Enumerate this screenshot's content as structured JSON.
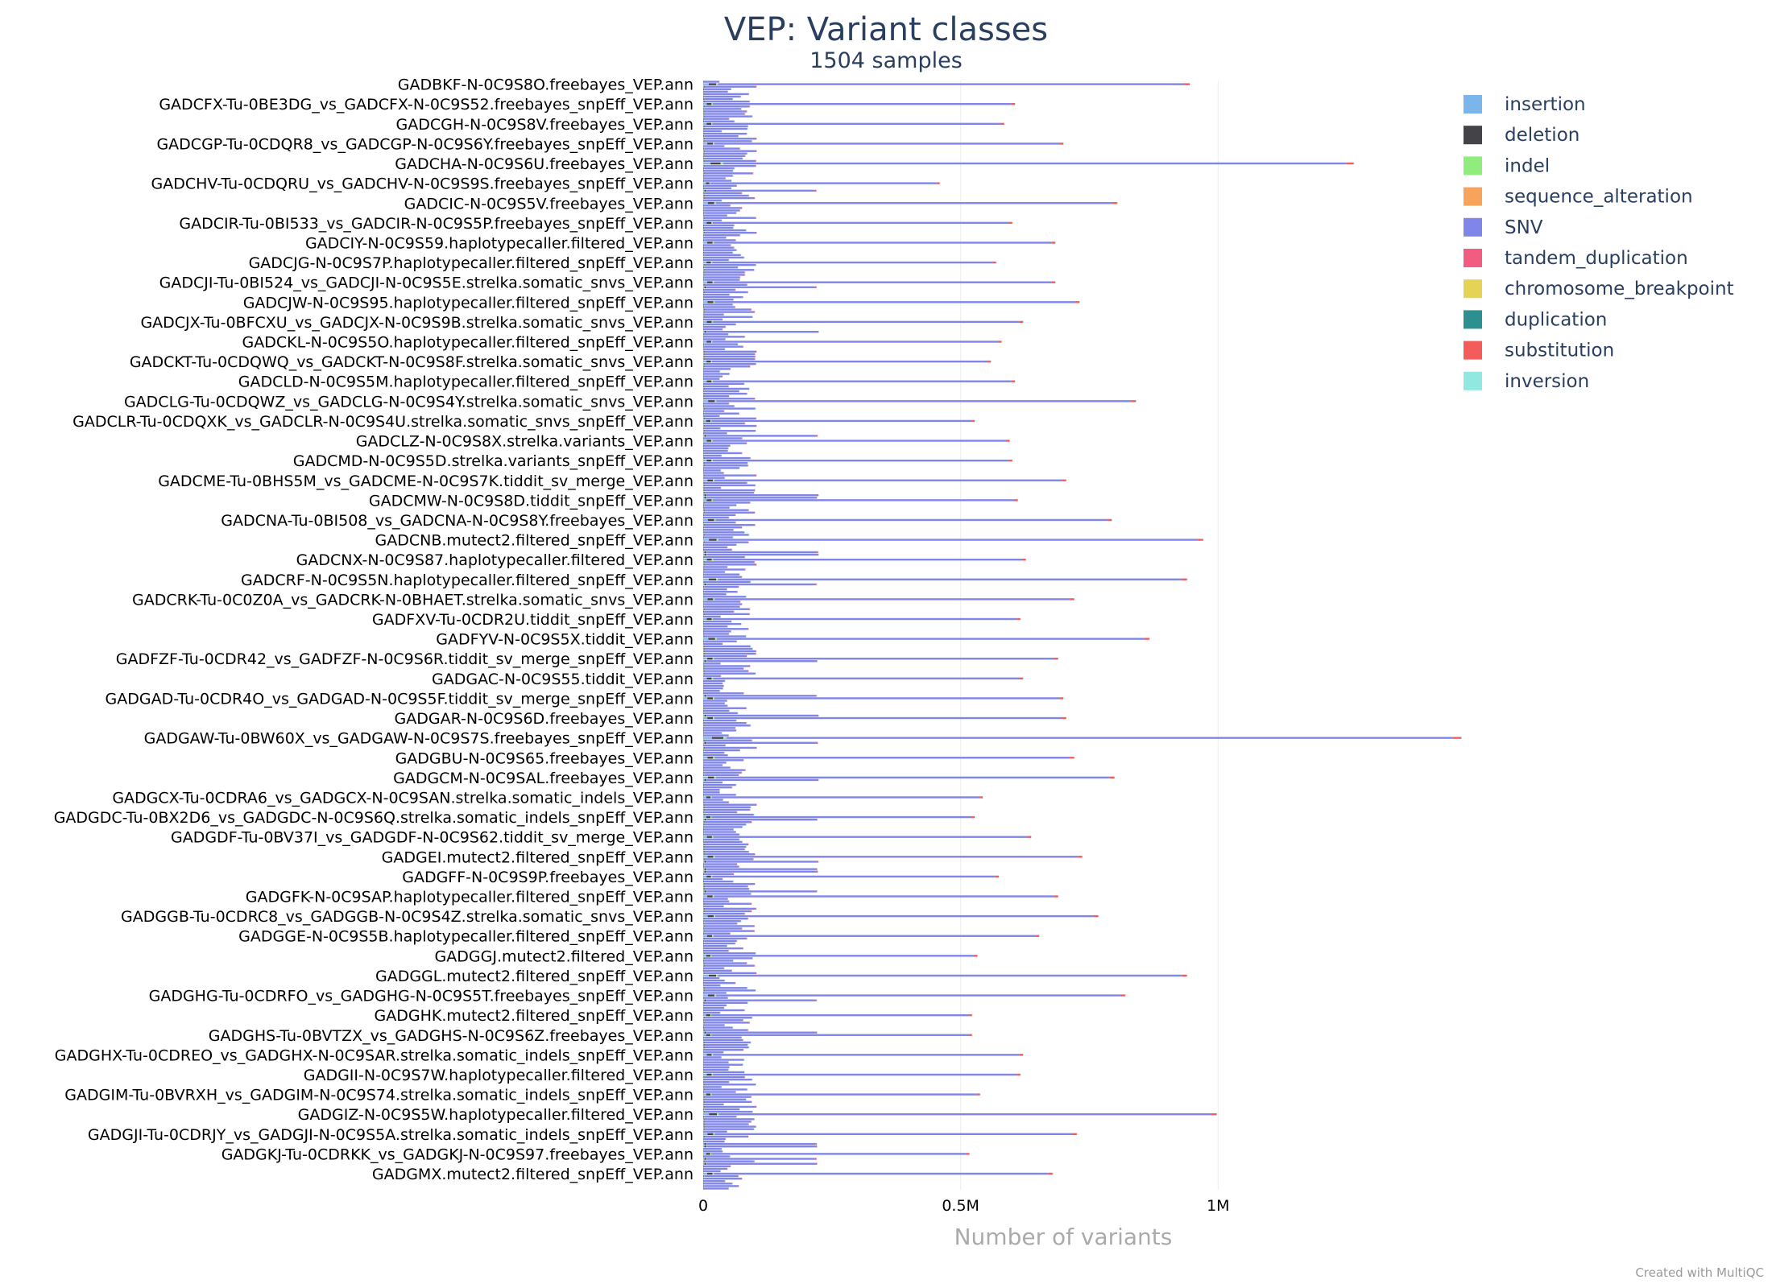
{
  "chart_data": {
    "type": "bar",
    "orientation": "horizontal",
    "stacked": true,
    "title": "VEP: Variant classes",
    "subtitle": "1504 samples",
    "xlabel": "Number of variants",
    "ylabel": "",
    "xlim": [
      0,
      1450000
    ],
    "xticks": [
      {
        "value": 0,
        "label": "0"
      },
      {
        "value": 500000,
        "label": "0.5M"
      },
      {
        "value": 1000000,
        "label": "1M"
      }
    ],
    "grid": true,
    "legend_position": "top-right",
    "credit": "Created with MultiQC",
    "series": [
      {
        "name": "insertion",
        "color": "#7cb5ec"
      },
      {
        "name": "deletion",
        "color": "#434348"
      },
      {
        "name": "indel",
        "color": "#90ed7d"
      },
      {
        "name": "sequence_alteration",
        "color": "#f7a35c"
      },
      {
        "name": "SNV",
        "color": "#8085e9"
      },
      {
        "name": "tandem_duplication",
        "color": "#f15c80"
      },
      {
        "name": "chromosome_breakpoint",
        "color": "#e4d354"
      },
      {
        "name": "duplication",
        "color": "#2b908f"
      },
      {
        "name": "substitution",
        "color": "#f45b5b"
      },
      {
        "name": "inversion",
        "color": "#91e8e1"
      }
    ],
    "labeled_categories": [
      {
        "label": "GADBKF-N-0C9S8O.freebayes_VEP.ann",
        "snv": 905000
      },
      {
        "label": "GADCFX-Tu-0BE3DG_vs_GADCFX-N-0C9S52.freebayes_snpEff_VEP.ann",
        "snv": 580000
      },
      {
        "label": "GADCGH-N-0C9S8V.freebayes_VEP.ann",
        "snv": 560000
      },
      {
        "label": "GADCGP-Tu-0CDQR8_vs_GADCGP-N-0C9S6Y.freebayes_snpEff_VEP.ann",
        "snv": 670000
      },
      {
        "label": "GADCHA-N-0C9S6U.freebayes_VEP.ann",
        "snv": 1210000
      },
      {
        "label": "GADCHV-Tu-0CDQRU_vs_GADCHV-N-0C9S9S.freebayes_snpEff_VEP.ann",
        "snv": 440000
      },
      {
        "label": "GADCIC-N-0C9S5V.freebayes_VEP.ann",
        "snv": 770000
      },
      {
        "label": "GADCIR-Tu-0BI533_vs_GADCIR-N-0C9S5P.freebayes_snpEff_VEP.ann",
        "snv": 575000
      },
      {
        "label": "GADCIY-N-0C9S59.haplotypecaller.filtered_VEP.ann",
        "snv": 655000
      },
      {
        "label": "GADCJG-N-0C9S7P.haplotypecaller.filtered_snpEff_VEP.ann",
        "snv": 545000
      },
      {
        "label": "GADCJI-Tu-0BI524_vs_GADCJI-N-0C9S5E.strelka.somatic_snvs_VEP.ann",
        "snv": 655000
      },
      {
        "label": "GADCJW-N-0C9S95.haplotypecaller.filtered_snpEff_VEP.ann",
        "snv": 700000
      },
      {
        "label": "GADCJX-Tu-0BFCXU_vs_GADCJX-N-0C9S9B.strelka.somatic_snvs_VEP.ann",
        "snv": 595000
      },
      {
        "label": "GADCKL-N-0C9S5O.haplotypecaller.filtered_snpEff_VEP.ann",
        "snv": 555000
      },
      {
        "label": "GADCKT-Tu-0CDQWQ_vs_GADCKT-N-0C9S8F.strelka.somatic_snvs_VEP.ann",
        "snv": 535000
      },
      {
        "label": "GADCLD-N-0C9S5M.haplotypecaller.filtered_snpEff_VEP.ann",
        "snv": 580000
      },
      {
        "label": "GADCLG-Tu-0CDQWZ_vs_GADCLG-N-0C9S4Y.strelka.somatic_snvs_VEP.ann",
        "snv": 805000
      },
      {
        "label": "GADCLR-Tu-0CDQXK_vs_GADCLR-N-0C9S4U.strelka.somatic_snvs_snpEff_VEP.ann",
        "snv": 505000
      },
      {
        "label": "GADCLZ-N-0C9S8X.strelka.variants_VEP.ann",
        "snv": 570000
      },
      {
        "label": "GADCMD-N-0C9S5D.strelka.variants_snpEff_VEP.ann",
        "snv": 575000
      },
      {
        "label": "GADCME-Tu-0BHS5M_vs_GADCME-N-0C9S7K.tiddit_sv_merge_VEP.ann",
        "snv": 675000
      },
      {
        "label": "GADCMW-N-0C9S8D.tiddit_snpEff_VEP.ann",
        "snv": 585000
      },
      {
        "label": "GADCNA-Tu-0BI508_vs_GADCNA-N-0C9S8Y.freebayes_VEP.ann",
        "snv": 760000
      },
      {
        "label": "GADCNB.mutect2.filtered_snpEff_VEP.ann",
        "snv": 930000
      },
      {
        "label": "GADCNX-N-0C9S87.haplotypecaller.filtered_VEP.ann",
        "snv": 600000
      },
      {
        "label": "GADCRF-N-0C9S5N.haplotypecaller.filtered_snpEff_VEP.ann",
        "snv": 900000
      },
      {
        "label": "GADCRK-Tu-0C0Z0A_vs_GADCRK-N-0BHAET.strelka.somatic_snvs_VEP.ann",
        "snv": 690000
      },
      {
        "label": "GADFXV-Tu-0CDR2U.tiddit_snpEff_VEP.ann",
        "snv": 590000
      },
      {
        "label": "GADFYV-N-0C9S5X.tiddit_VEP.ann",
        "snv": 830000
      },
      {
        "label": "GADFZF-Tu-0CDR42_vs_GADFZF-N-0C9S6R.tiddit_sv_merge_snpEff_VEP.ann",
        "snv": 660000
      },
      {
        "label": "GADGAC-N-0C9S55.tiddit_VEP.ann",
        "snv": 595000
      },
      {
        "label": "GADGAD-Tu-0CDR4O_vs_GADGAD-N-0C9S5F.tiddit_sv_merge_snpEff_VEP.ann",
        "snv": 670000
      },
      {
        "label": "GADGAR-N-0C9S6D.freebayes_VEP.ann",
        "snv": 675000
      },
      {
        "label": "GADGAW-Tu-0BW60X_vs_GADGAW-N-0C9S7S.freebayes_snpEff_VEP.ann",
        "snv": 1410000
      },
      {
        "label": "GADGBU-N-0C9S65.freebayes_VEP.ann",
        "snv": 690000
      },
      {
        "label": "GADGCM-N-0C9SAL.freebayes_VEP.ann",
        "snv": 765000
      },
      {
        "label": "GADGCX-Tu-0CDRA6_vs_GADGCX-N-0C9SAN.strelka.somatic_indels_VEP.ann",
        "snv": 520000
      },
      {
        "label": "GADGDC-Tu-0BX2D6_vs_GADGDC-N-0C9S6Q.strelka.somatic_indels_snpEff_VEP.ann",
        "snv": 505000
      },
      {
        "label": "GADGDF-Tu-0BV37I_vs_GADGDF-N-0C9S62.tiddit_sv_merge_VEP.ann",
        "snv": 610000
      },
      {
        "label": "GADGEI.mutect2.filtered_snpEff_VEP.ann",
        "snv": 705000
      },
      {
        "label": "GADGFF-N-0C9S9P.freebayes_VEP.ann",
        "snv": 550000
      },
      {
        "label": "GADGFK-N-0C9SAP.haplotypecaller.filtered_snpEff_VEP.ann",
        "snv": 660000
      },
      {
        "label": "GADGGB-Tu-0CDRC8_vs_GADGGB-N-0C9S4Z.strelka.somatic_snvs_VEP.ann",
        "snv": 735000
      },
      {
        "label": "GADGGE-N-0C9S5B.haplotypecaller.filtered_snpEff_VEP.ann",
        "snv": 625000
      },
      {
        "label": "GADGGJ.mutect2.filtered_VEP.ann",
        "snv": 510000
      },
      {
        "label": "GADGGL.mutect2.filtered_snpEff_VEP.ann",
        "snv": 900000
      },
      {
        "label": "GADGHG-Tu-0CDRFO_vs_GADGHG-N-0C9S5T.freebayes_snpEff_VEP.ann",
        "snv": 785000
      },
      {
        "label": "GADGHK.mutect2.filtered_snpEff_VEP.ann",
        "snv": 500000
      },
      {
        "label": "GADGHS-Tu-0BVTZX_vs_GADGHS-N-0C9S6Z.freebayes_VEP.ann",
        "snv": 500000
      },
      {
        "label": "GADGHX-Tu-0CDREO_vs_GADGHX-N-0C9SAR.strelka.somatic_indels_snpEff_VEP.ann",
        "snv": 595000
      },
      {
        "label": "GADGII-N-0C9S7W.haplotypecaller.filtered_VEP.ann",
        "snv": 590000
      },
      {
        "label": "GADGIM-Tu-0BVRXH_vs_GADGIM-N-0C9S74.strelka.somatic_indels_snpEff_VEP.ann",
        "snv": 515000
      },
      {
        "label": "GADGIZ-N-0C9S5W.haplotypecaller.filtered_VEP.ann",
        "snv": 955000
      },
      {
        "label": "GADGJI-Tu-0CDRJY_vs_GADGJI-N-0C9S5A.strelka.somatic_indels_snpEff_VEP.ann",
        "snv": 695000
      },
      {
        "label": "GADGKJ-Tu-0CDRKK_vs_GADGKJ-N-0C9S97.freebayes_VEP.ann",
        "snv": 495000
      },
      {
        "label": "GADGMX.mutect2.filtered_snpEff_VEP.ann",
        "snv": 650000
      }
    ]
  }
}
